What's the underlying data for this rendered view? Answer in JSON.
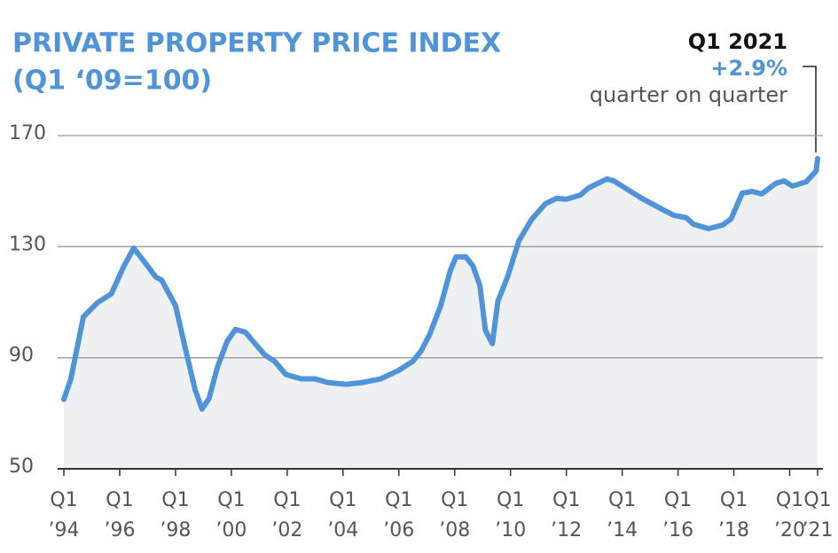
{
  "chart_data": {
    "type": "area-line",
    "title": "PRIVATE PROPERTY PRICE INDEX",
    "subtitle": "(Q1 ‘09=100)",
    "annotation": {
      "period": "Q1 2021",
      "change": "+2.9%",
      "note": "quarter on quarter"
    },
    "color": "#4f93d8",
    "fill": "#eef0f1",
    "xlim": [
      1994,
      2021
    ],
    "ylim": [
      50,
      170
    ],
    "yticks": [
      50,
      90,
      130,
      170
    ],
    "grid": true,
    "xticks": [
      {
        "value": 1994,
        "label": "Q1 ’94"
      },
      {
        "value": 1996,
        "label": "Q1 ’96"
      },
      {
        "value": 1998,
        "label": "Q1 ’98"
      },
      {
        "value": 2000,
        "label": "Q1 ’00"
      },
      {
        "value": 2002,
        "label": "Q1 ’02"
      },
      {
        "value": 2004,
        "label": "Q1 ’04"
      },
      {
        "value": 2006,
        "label": "Q1 ’06"
      },
      {
        "value": 2008,
        "label": "Q1 ’08"
      },
      {
        "value": 2010,
        "label": "Q1 ’10"
      },
      {
        "value": 2012,
        "label": "Q1 ’12"
      },
      {
        "value": 2014,
        "label": "Q1 ’14"
      },
      {
        "value": 2016,
        "label": "Q1 ’16"
      },
      {
        "value": 2018,
        "label": "Q1 ’18"
      },
      {
        "value": 2020,
        "label": "Q1 ’20"
      },
      {
        "value": 2021,
        "label": "Q1 ’21"
      }
    ],
    "x": [
      1994.0,
      1994.25,
      1994.7,
      1995.2,
      1995.7,
      1996.15,
      1996.5,
      1996.8,
      1997.3,
      1997.5,
      1998.0,
      1998.4,
      1998.7,
      1998.95,
      1999.2,
      1999.5,
      1999.85,
      2000.15,
      2000.5,
      2000.9,
      2001.2,
      2001.55,
      2001.95,
      2002.5,
      2003.0,
      2003.45,
      2004.1,
      2004.7,
      2005.35,
      2006.0,
      2006.5,
      2006.8,
      2007.1,
      2007.5,
      2007.85,
      2008.05,
      2008.4,
      2008.65,
      2008.9,
      2009.1,
      2009.35,
      2009.55,
      2009.9,
      2010.3,
      2010.75,
      2011.25,
      2011.65,
      2012.0,
      2012.5,
      2012.8,
      2013.45,
      2013.7,
      2014.25,
      2014.7,
      2015.35,
      2015.85,
      2016.3,
      2016.55,
      2017.1,
      2017.6,
      2017.9,
      2018.3,
      2018.65,
      2019.0,
      2019.5,
      2019.8,
      2020.1,
      2020.6,
      2020.95,
      2021.0
    ],
    "values": [
      75.0,
      82.4,
      104.7,
      109.8,
      113.0,
      123.0,
      129.5,
      125.7,
      119.0,
      118.0,
      108.8,
      91.3,
      78.5,
      71.5,
      75.3,
      86.5,
      96.0,
      100.2,
      99.2,
      94.5,
      91.0,
      88.7,
      84.0,
      82.4,
      82.4,
      81.1,
      80.4,
      81.1,
      82.4,
      85.5,
      88.7,
      92.5,
      98.3,
      108.8,
      121.6,
      126.3,
      126.3,
      123.1,
      116.1,
      99.9,
      95.1,
      110.4,
      119.3,
      132.1,
      139.7,
      145.5,
      147.4,
      147.1,
      148.6,
      151.2,
      154.4,
      153.7,
      150.2,
      147.4,
      143.9,
      141.3,
      140.4,
      138.1,
      136.5,
      137.8,
      140.0,
      149.3,
      149.9,
      149.0,
      152.8,
      153.7,
      151.8,
      153.4,
      157.3,
      161.7
    ]
  }
}
